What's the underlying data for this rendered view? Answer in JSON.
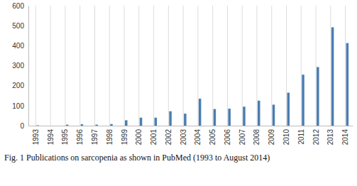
{
  "chart_data": {
    "type": "bar",
    "title": "Fig. 1 Publications on sarcopenia as shown in PubMed (1993 to August 2014)",
    "categories": [
      "1993",
      "1994",
      "1995",
      "1996",
      "1997",
      "1998",
      "1999",
      "2000",
      "2001",
      "2002",
      "2003",
      "2004",
      "2005",
      "2006",
      "2007",
      "2008",
      "2009",
      "2010",
      "2011",
      "2012",
      "2013",
      "2014"
    ],
    "values": [
      2,
      0,
      5,
      7,
      5,
      8,
      27,
      40,
      40,
      72,
      60,
      135,
      83,
      85,
      95,
      125,
      105,
      165,
      255,
      293,
      492,
      413
    ],
    "color": "#4a7db3",
    "ylim": [
      0,
      600
    ],
    "yticks": [
      0,
      100,
      200,
      300,
      400,
      500,
      600
    ],
    "grid": true
  }
}
